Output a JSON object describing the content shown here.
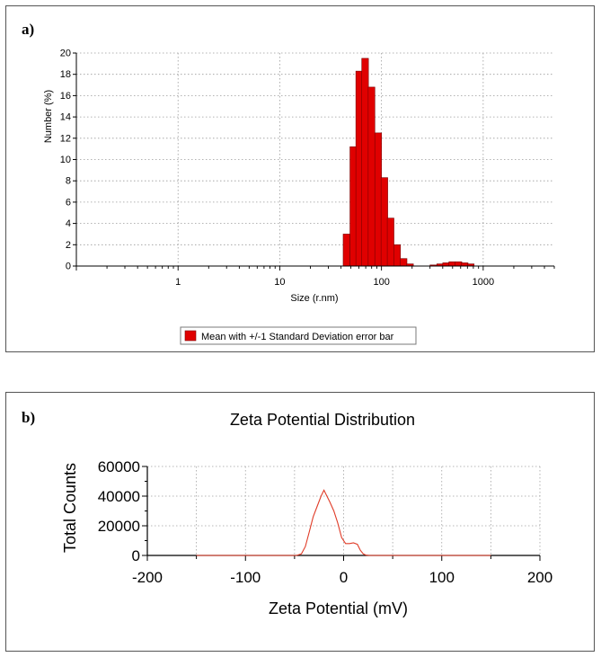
{
  "panel_labels": {
    "a": "a)",
    "b": "b)"
  },
  "chart_data": [
    {
      "type": "bar",
      "panel": "a)",
      "title": "",
      "xlabel": "Size (r.nm)",
      "ylabel": "Number (%)",
      "xscale": "log",
      "xlim": [
        0.1,
        5000
      ],
      "ylim": [
        0,
        20
      ],
      "yticks": [
        "0",
        "2",
        "4",
        "6",
        "8",
        "10",
        "12",
        "14",
        "16",
        "18",
        "20"
      ],
      "xticks": [
        {
          "value": 1,
          "label": "1"
        },
        {
          "value": 10,
          "label": "10"
        },
        {
          "value": 100,
          "label": "100"
        },
        {
          "value": 1000,
          "label": "1000"
        }
      ],
      "grid": true,
      "bar_color": "#e00000",
      "legend": {
        "label": "Mean with +/-1 Standard Deviation error bar",
        "placement": "bottom"
      },
      "bins": [
        {
          "x": 42,
          "value": 3.0
        },
        {
          "x": 49,
          "value": 11.2
        },
        {
          "x": 56,
          "value": 18.3
        },
        {
          "x": 64,
          "value": 19.5
        },
        {
          "x": 74,
          "value": 16.8
        },
        {
          "x": 86,
          "value": 12.5
        },
        {
          "x": 99,
          "value": 8.3
        },
        {
          "x": 114,
          "value": 4.5
        },
        {
          "x": 132,
          "value": 2.0
        },
        {
          "x": 153,
          "value": 0.7
        },
        {
          "x": 177,
          "value": 0.2
        },
        {
          "x": 300,
          "value": 0.1
        },
        {
          "x": 350,
          "value": 0.2
        },
        {
          "x": 400,
          "value": 0.3
        },
        {
          "x": 460,
          "value": 0.4
        },
        {
          "x": 530,
          "value": 0.4
        },
        {
          "x": 610,
          "value": 0.3
        },
        {
          "x": 700,
          "value": 0.2
        }
      ]
    },
    {
      "type": "line",
      "panel": "b)",
      "title": "Zeta Potential Distribution",
      "xlabel": "Zeta Potential (mV)",
      "ylabel": "Total Counts",
      "xlim": [
        -200,
        200
      ],
      "ylim": [
        0,
        60000
      ],
      "xticks": [
        "-200",
        "-100",
        "0",
        "100",
        "200"
      ],
      "yticks": [
        "0",
        "20000",
        "40000",
        "60000"
      ],
      "grid": true,
      "line_color": "#e03c28",
      "series": [
        {
          "name": "Zeta Potential Distribution",
          "x": [
            -150,
            -48,
            -43,
            -39,
            -35,
            -31,
            -27,
            -23,
            -20,
            -17,
            -14,
            -10,
            -6,
            -2,
            2,
            6,
            10,
            14,
            17,
            20,
            23,
            26,
            30,
            150
          ],
          "y": [
            0,
            0,
            1000,
            6000,
            16000,
            26000,
            33000,
            40000,
            44000,
            40000,
            36000,
            30000,
            22000,
            12000,
            8000,
            8000,
            8500,
            7500,
            3500,
            1000,
            200,
            0,
            0,
            0
          ]
        }
      ]
    }
  ]
}
